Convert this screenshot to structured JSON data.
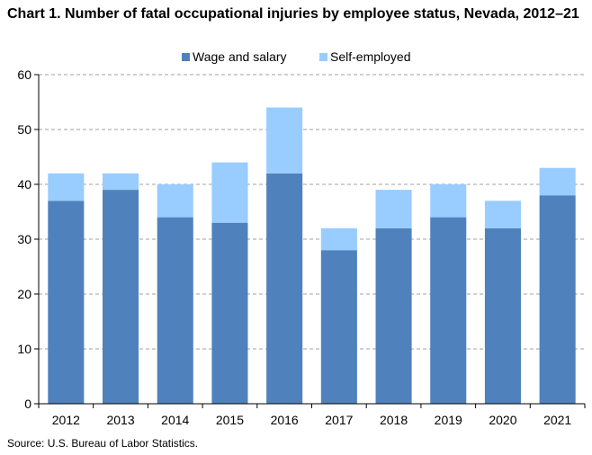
{
  "chart_data": {
    "type": "bar",
    "stacked": true,
    "title": "Chart 1. Number of fatal occupational injuries by employee status, Nevada, 2012–21",
    "categories": [
      "2012",
      "2013",
      "2014",
      "2015",
      "2016",
      "2017",
      "2018",
      "2019",
      "2020",
      "2021"
    ],
    "series": [
      {
        "name": "Wage and salary",
        "color": "#4f81bd",
        "values": [
          37,
          39,
          34,
          33,
          42,
          28,
          32,
          34,
          32,
          38
        ]
      },
      {
        "name": "Self-employed",
        "color": "#99ccff",
        "values": [
          5,
          3,
          6,
          11,
          12,
          4,
          7,
          6,
          5,
          5
        ]
      }
    ],
    "ylim": [
      0,
      60
    ],
    "yticks": [
      0,
      10,
      20,
      30,
      40,
      50,
      60
    ],
    "grid": true,
    "legend_position": "top-center",
    "xlabel": "",
    "ylabel": ""
  },
  "source": "Source: U.S. Bureau of Labor Statistics."
}
